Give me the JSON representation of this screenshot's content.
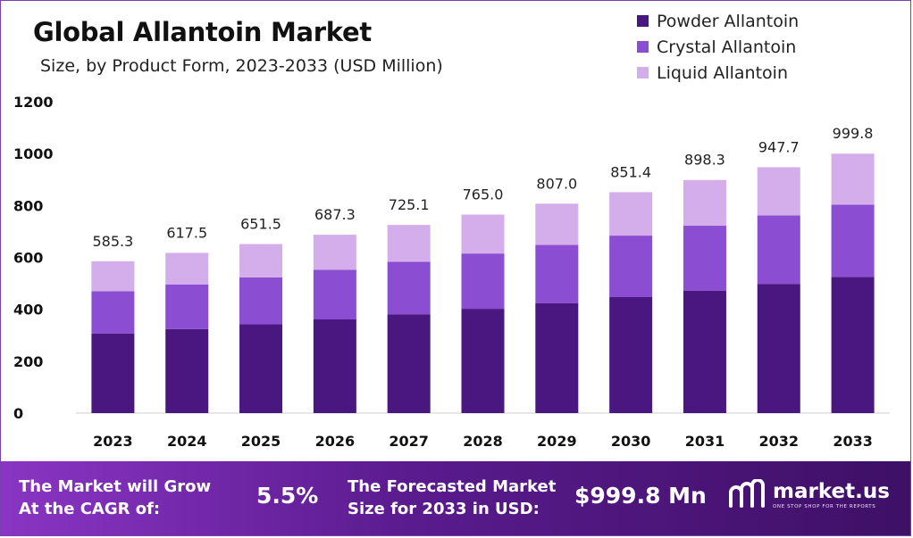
{
  "chart_data": {
    "type": "bar",
    "stacked": true,
    "title": "Global Allantoin Market",
    "subtitle": "Size, by Product Form, 2023-2033 (USD Million)",
    "categories": [
      "2023",
      "2024",
      "2025",
      "2026",
      "2027",
      "2028",
      "2029",
      "2030",
      "2031",
      "2032",
      "2033"
    ],
    "series": [
      {
        "name": "Powder Allantoin",
        "color": "#4a1680",
        "values": [
          307,
          324,
          342,
          361,
          381,
          402,
          424,
          447,
          472,
          498,
          525
        ]
      },
      {
        "name": "Crystal Allantoin",
        "color": "#8b4dd1",
        "values": [
          163,
          172,
          181,
          191,
          202,
          213,
          224,
          237,
          250,
          264,
          278
        ]
      },
      {
        "name": "Liquid Allantoin",
        "color": "#d4aeeb",
        "values": [
          115.3,
          121.5,
          128.5,
          135.3,
          142.1,
          150.0,
          159.0,
          167.4,
          176.3,
          185.7,
          196.8
        ]
      }
    ],
    "totals": [
      "585.3",
      "617.5",
      "651.5",
      "687.3",
      "725.1",
      "765.0",
      "807.0",
      "851.4",
      "898.3",
      "947.7",
      "999.8"
    ],
    "ylim": [
      0,
      1200
    ],
    "yticks": [
      0,
      200,
      400,
      600,
      800,
      1000,
      1200
    ],
    "grid": false,
    "legend_position": "top-right"
  },
  "footer": {
    "cagr_line1": "The Market will Grow",
    "cagr_line2": "At the CAGR of:",
    "cagr_value": "5.5%",
    "forecast_line1": "The Forecasted Market",
    "forecast_line2": "Size for 2033 in USD:",
    "forecast_value": "$999.8 Mn",
    "brand_name": "market.us",
    "brand_tagline": "ONE STOP SHOP FOR THE REPORTS"
  }
}
